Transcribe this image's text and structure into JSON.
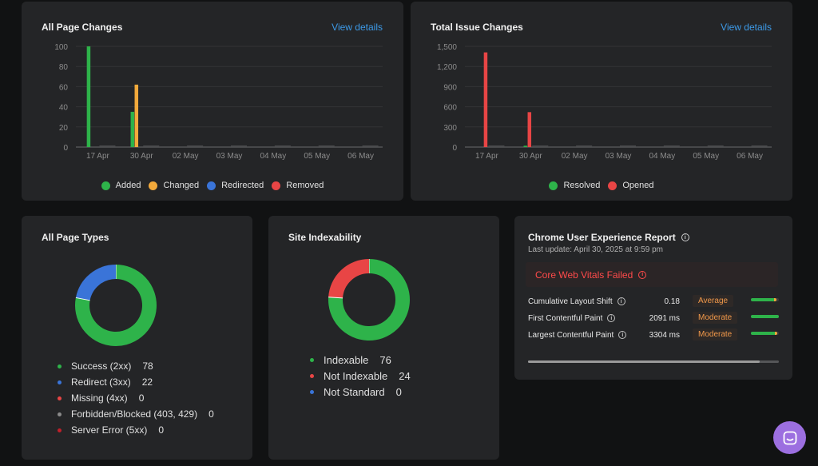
{
  "page_changes": {
    "title": "All Page Changes",
    "view_link": "View details",
    "legend": [
      {
        "label": "Added",
        "color": "#2eb34a"
      },
      {
        "label": "Changed",
        "color": "#f2a93b"
      },
      {
        "label": "Redirected",
        "color": "#3a74d8"
      },
      {
        "label": "Removed",
        "color": "#e84545"
      }
    ]
  },
  "issue_changes": {
    "title": "Total Issue Changes",
    "view_link": "View details",
    "legend": [
      {
        "label": "Resolved",
        "color": "#2eb34a"
      },
      {
        "label": "Opened",
        "color": "#e84545"
      }
    ]
  },
  "page_types": {
    "title": "All Page Types",
    "items": [
      {
        "label": "Success (2xx)",
        "value": "78",
        "color": "#2eb34a"
      },
      {
        "label": "Redirect (3xx)",
        "value": "22",
        "color": "#3a74d8"
      },
      {
        "label": "Missing (4xx)",
        "value": "0",
        "color": "#e84545"
      },
      {
        "label": "Forbidden/Blocked (403, 429)",
        "value": "0",
        "color": "#8a8a8a"
      },
      {
        "label": "Server Error (5xx)",
        "value": "0",
        "color": "#c0202a"
      }
    ]
  },
  "indexability": {
    "title": "Site Indexability",
    "items": [
      {
        "label": "Indexable",
        "value": "76",
        "color": "#2eb34a"
      },
      {
        "label": "Not Indexable",
        "value": "24",
        "color": "#e84545"
      },
      {
        "label": "Not Standard",
        "value": "0",
        "color": "#3a74d8"
      }
    ]
  },
  "crux": {
    "title": "Chrome User Experience Report",
    "last_update": "Last update: April 30, 2025 at 9:59 pm",
    "banner": "Core Web Vitals Failed",
    "metrics": [
      {
        "label": "Cumulative Layout Shift",
        "value": "0.18",
        "rating": "Average",
        "fill": 0.9
      },
      {
        "label": "First Contentful Paint",
        "value": "2091 ms",
        "rating": "Moderate",
        "fill": 1.0
      },
      {
        "label": "Largest Contentful Paint",
        "value": "3304 ms",
        "rating": "Moderate",
        "fill": 0.95
      }
    ]
  },
  "chart_data": [
    {
      "type": "bar",
      "categories": [
        "17 Apr",
        "30 Apr",
        "02 May",
        "03 May",
        "04 May",
        "05 May",
        "06 May"
      ],
      "ylim": [
        0,
        100
      ],
      "yticks": [
        "0",
        "20",
        "40",
        "60",
        "80",
        "100"
      ],
      "series": [
        {
          "name": "Added",
          "color": "#2eb34a",
          "values": [
            100,
            35,
            0,
            0,
            0,
            0,
            0
          ]
        },
        {
          "name": "Changed",
          "color": "#f2a93b",
          "values": [
            0,
            62,
            0,
            0,
            0,
            0,
            0
          ]
        },
        {
          "name": "Redirected",
          "color": "#3a74d8",
          "values": [
            0,
            0,
            0,
            0,
            0,
            0,
            0
          ]
        },
        {
          "name": "Removed",
          "color": "#e84545",
          "values": [
            0,
            0,
            0,
            0,
            0,
            0,
            0
          ]
        }
      ]
    },
    {
      "type": "bar",
      "categories": [
        "17 Apr",
        "30 Apr",
        "02 May",
        "03 May",
        "04 May",
        "05 May",
        "06 May"
      ],
      "ylim": [
        0,
        1500
      ],
      "yticks": [
        "0",
        "300",
        "600",
        "900",
        "1,200",
        "1,500"
      ],
      "series": [
        {
          "name": "Resolved",
          "color": "#2eb34a",
          "values": [
            0,
            20,
            0,
            0,
            0,
            0,
            0
          ]
        },
        {
          "name": "Opened",
          "color": "#e84545",
          "values": [
            1410,
            520,
            0,
            0,
            0,
            0,
            0
          ]
        }
      ]
    }
  ]
}
